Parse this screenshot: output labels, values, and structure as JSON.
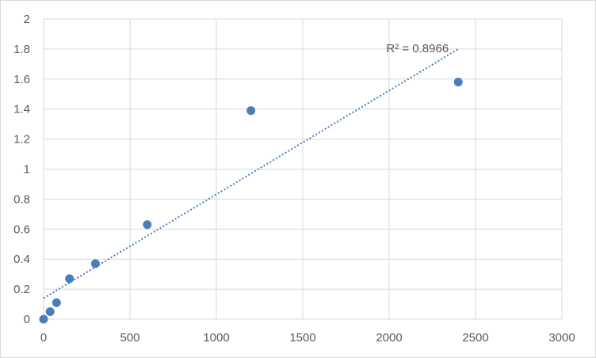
{
  "chart_data": {
    "type": "scatter",
    "title": "",
    "xlabel": "",
    "ylabel": "",
    "xlim": [
      0,
      3000
    ],
    "ylim": [
      0,
      2
    ],
    "x_ticks": [
      0,
      500,
      1000,
      1500,
      2000,
      2500,
      3000
    ],
    "y_ticks": [
      0,
      0.2,
      0.4,
      0.6,
      0.8,
      1,
      1.2,
      1.4,
      1.6,
      1.8,
      2
    ],
    "x_tick_labels": [
      "0",
      "500",
      "1000",
      "1500",
      "2000",
      "2500",
      "3000"
    ],
    "y_tick_labels": [
      "0",
      "0.2",
      "0.4",
      "0.6",
      "0.8",
      "1",
      "1.2",
      "1.4",
      "1.6",
      "1.8",
      "2"
    ],
    "grid": true,
    "legend": "none",
    "series": [
      {
        "x": [
          0,
          37.5,
          75,
          150,
          300,
          600,
          1200,
          2400
        ],
        "y": [
          0.0,
          0.05,
          0.11,
          0.27,
          0.37,
          0.63,
          1.39,
          1.58
        ],
        "color": "#4a7ebb"
      }
    ],
    "trendline": {
      "type": "linear",
      "style": "dotted",
      "color": "#4a7ebb",
      "x_range": [
        0,
        2400
      ],
      "y_range": [
        0.14,
        1.8
      ],
      "r_squared_label": "R² = 0.8966"
    }
  }
}
